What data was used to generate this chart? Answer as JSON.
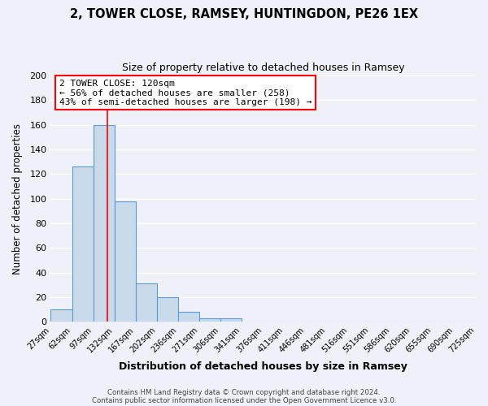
{
  "title": "2, TOWER CLOSE, RAMSEY, HUNTINGDON, PE26 1EX",
  "subtitle": "Size of property relative to detached houses in Ramsey",
  "xlabel": "Distribution of detached houses by size in Ramsey",
  "ylabel": "Number of detached properties",
  "bar_edges": [
    27,
    62,
    97,
    132,
    167,
    202,
    236,
    271,
    306,
    341,
    376,
    411,
    446,
    481,
    516,
    551,
    586,
    620,
    655,
    690,
    725
  ],
  "bar_heights": [
    10,
    126,
    160,
    98,
    31,
    20,
    8,
    3,
    3,
    0,
    0,
    0,
    0,
    0,
    0,
    0,
    0,
    0,
    0,
    0
  ],
  "bar_color": "#c9daea",
  "bar_edge_color": "#5b9bd5",
  "tick_labels": [
    "27sqm",
    "62sqm",
    "97sqm",
    "132sqm",
    "167sqm",
    "202sqm",
    "236sqm",
    "271sqm",
    "306sqm",
    "341sqm",
    "376sqm",
    "411sqm",
    "446sqm",
    "481sqm",
    "516sqm",
    "551sqm",
    "586sqm",
    "620sqm",
    "655sqm",
    "690sqm",
    "725sqm"
  ],
  "ylim": [
    0,
    200
  ],
  "yticks": [
    0,
    20,
    40,
    60,
    80,
    100,
    120,
    140,
    160,
    180,
    200
  ],
  "red_line_x": 120,
  "annotation_title": "2 TOWER CLOSE: 120sqm",
  "annotation_line1": "← 56% of detached houses are smaller (258)",
  "annotation_line2": "43% of semi-detached houses are larger (198) →",
  "footer1": "Contains HM Land Registry data © Crown copyright and database right 2024.",
  "footer2": "Contains public sector information licensed under the Open Government Licence v3.0.",
  "background_color": "#eef2f8",
  "grid_color": "#ffffff"
}
